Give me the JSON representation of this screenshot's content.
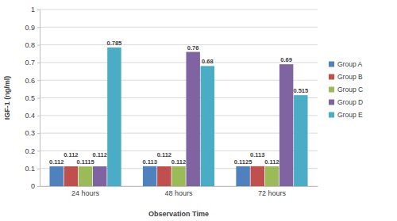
{
  "chart_data": {
    "type": "bar",
    "categories": [
      "24 hours",
      "48 hours",
      "72 hours"
    ],
    "series": [
      {
        "name": "Group A",
        "color": "#4f81bd",
        "values": [
          0.112,
          0.113,
          0.1125
        ]
      },
      {
        "name": "Group B",
        "color": "#c0504d",
        "values": [
          0.112,
          0.112,
          0.113
        ]
      },
      {
        "name": "Group C",
        "color": "#9bbb59",
        "values": [
          0.1115,
          0.112,
          0.112
        ]
      },
      {
        "name": "Group D",
        "color": "#8064a2",
        "values": [
          0.112,
          0.76,
          0.69
        ]
      },
      {
        "name": "Group E",
        "color": "#4bacc6",
        "values": [
          0.785,
          0.68,
          0.515
        ]
      }
    ],
    "x_label": "Observation Time",
    "y_label": "IGF-1 (ng/ml)",
    "ylim": [
      0,
      1
    ],
    "yticks": [
      0,
      0.1,
      0.2,
      0.3,
      0.4,
      0.5,
      0.6,
      0.7,
      0.8,
      0.9,
      1
    ],
    "grid": true,
    "legend": "right",
    "data_labels": true
  }
}
